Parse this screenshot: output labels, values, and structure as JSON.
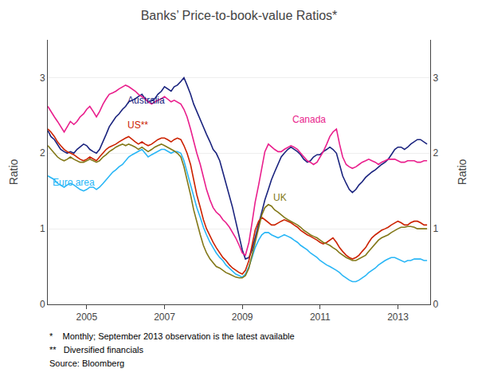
{
  "chart_data": {
    "type": "line",
    "title": "Banks’ Price-to-book-value Ratios*",
    "ylabel": "Ratio",
    "y2label": "Ratio",
    "xlim": [
      2004.0,
      2013.83
    ],
    "xticks": [
      2005,
      2007,
      2009,
      2011,
      2013
    ],
    "ylim": [
      0,
      3.5
    ],
    "yticks": [
      0,
      1,
      2,
      3
    ],
    "y2lim": [
      0,
      3.5
    ],
    "y2ticks": [
      0,
      1,
      2,
      3
    ],
    "grid": true,
    "legend": false,
    "x": [
      2004.0,
      2004.08,
      2004.17,
      2004.25,
      2004.33,
      2004.42,
      2004.5,
      2004.58,
      2004.67,
      2004.75,
      2004.83,
      2004.92,
      2005.0,
      2005.08,
      2005.17,
      2005.25,
      2005.33,
      2005.42,
      2005.5,
      2005.58,
      2005.67,
      2005.75,
      2005.83,
      2005.92,
      2006.0,
      2006.08,
      2006.17,
      2006.25,
      2006.33,
      2006.42,
      2006.5,
      2006.58,
      2006.67,
      2006.75,
      2006.83,
      2006.92,
      2007.0,
      2007.08,
      2007.17,
      2007.25,
      2007.33,
      2007.42,
      2007.5,
      2007.58,
      2007.67,
      2007.75,
      2007.83,
      2007.92,
      2008.0,
      2008.08,
      2008.17,
      2008.25,
      2008.33,
      2008.42,
      2008.5,
      2008.58,
      2008.67,
      2008.75,
      2008.83,
      2008.92,
      2009.0,
      2009.08,
      2009.17,
      2009.25,
      2009.33,
      2009.42,
      2009.5,
      2009.58,
      2009.67,
      2009.75,
      2009.83,
      2009.92,
      2010.0,
      2010.08,
      2010.17,
      2010.25,
      2010.33,
      2010.42,
      2010.5,
      2010.58,
      2010.67,
      2010.75,
      2010.83,
      2010.92,
      2011.0,
      2011.08,
      2011.17,
      2011.25,
      2011.33,
      2011.42,
      2011.5,
      2011.58,
      2011.67,
      2011.75,
      2011.83,
      2011.92,
      2012.0,
      2012.08,
      2012.17,
      2012.25,
      2012.33,
      2012.42,
      2012.5,
      2012.58,
      2012.67,
      2012.75,
      2012.83,
      2012.92,
      2013.0,
      2013.08,
      2013.17,
      2013.25,
      2013.33,
      2013.42,
      2013.5,
      2013.58,
      2013.67,
      2013.75
    ],
    "series": [
      {
        "name": "Australia",
        "color": "#1a237e",
        "values": [
          2.3,
          2.22,
          2.18,
          2.12,
          2.05,
          2.02,
          2.0,
          2.02,
          2.0,
          2.05,
          2.08,
          2.12,
          2.1,
          2.05,
          2.02,
          2.0,
          2.05,
          2.15,
          2.25,
          2.35,
          2.42,
          2.48,
          2.52,
          2.58,
          2.62,
          2.68,
          2.7,
          2.72,
          2.75,
          2.78,
          2.72,
          2.68,
          2.7,
          2.72,
          2.78,
          2.82,
          2.88,
          2.85,
          2.82,
          2.88,
          2.9,
          2.95,
          3.0,
          2.9,
          2.78,
          2.65,
          2.55,
          2.45,
          2.35,
          2.25,
          2.15,
          2.05,
          2.0,
          1.9,
          1.75,
          1.6,
          1.45,
          1.28,
          1.1,
          0.9,
          0.72,
          0.6,
          0.62,
          0.72,
          0.88,
          1.05,
          1.2,
          1.38,
          1.52,
          1.65,
          1.75,
          1.85,
          1.95,
          2.0,
          2.05,
          2.08,
          2.05,
          2.02,
          1.98,
          1.92,
          1.88,
          1.9,
          1.95,
          1.98,
          1.98,
          2.02,
          2.05,
          2.08,
          2.05,
          2.0,
          1.85,
          1.7,
          1.6,
          1.52,
          1.48,
          1.52,
          1.58,
          1.62,
          1.68,
          1.72,
          1.75,
          1.78,
          1.82,
          1.85,
          1.88,
          1.92,
          1.98,
          2.05,
          2.08,
          2.08,
          2.05,
          2.08,
          2.12,
          2.15,
          2.18,
          2.18,
          2.15,
          2.12
        ]
      },
      {
        "name": "Canada",
        "color": "#e91e8c",
        "values": [
          2.62,
          2.55,
          2.48,
          2.42,
          2.35,
          2.28,
          2.35,
          2.42,
          2.38,
          2.42,
          2.48,
          2.52,
          2.58,
          2.62,
          2.55,
          2.48,
          2.55,
          2.65,
          2.72,
          2.78,
          2.8,
          2.82,
          2.85,
          2.88,
          2.9,
          2.88,
          2.85,
          2.82,
          2.78,
          2.75,
          2.72,
          2.68,
          2.65,
          2.68,
          2.7,
          2.72,
          2.75,
          2.72,
          2.68,
          2.7,
          2.68,
          2.65,
          2.58,
          2.48,
          2.32,
          2.15,
          2.0,
          1.85,
          1.68,
          1.52,
          1.38,
          1.28,
          1.22,
          1.18,
          1.12,
          1.08,
          1.02,
          0.95,
          0.88,
          0.78,
          0.68,
          0.65,
          0.82,
          1.08,
          1.35,
          1.58,
          1.82,
          2.02,
          2.12,
          2.08,
          2.05,
          2.02,
          2.02,
          2.05,
          2.08,
          2.1,
          2.08,
          2.05,
          2.0,
          1.95,
          1.9,
          1.88,
          1.85,
          1.88,
          1.95,
          2.02,
          2.12,
          2.22,
          2.28,
          2.32,
          2.12,
          1.95,
          1.85,
          1.82,
          1.8,
          1.82,
          1.85,
          1.88,
          1.9,
          1.92,
          1.9,
          1.88,
          1.85,
          1.88,
          1.9,
          1.92,
          1.92,
          1.92,
          1.9,
          1.88,
          1.88,
          1.9,
          1.9,
          1.9,
          1.88,
          1.88,
          1.9,
          1.9
        ]
      },
      {
        "name": "US**",
        "color": "#cc2200",
        "values": [
          2.32,
          2.28,
          2.22,
          2.15,
          2.1,
          2.05,
          2.02,
          2.0,
          1.98,
          1.95,
          1.92,
          1.9,
          1.92,
          1.95,
          1.92,
          1.9,
          1.95,
          2.0,
          2.05,
          2.08,
          2.1,
          2.12,
          2.15,
          2.18,
          2.2,
          2.22,
          2.18,
          2.15,
          2.12,
          2.15,
          2.12,
          2.1,
          2.12,
          2.15,
          2.18,
          2.2,
          2.2,
          2.18,
          2.15,
          2.18,
          2.2,
          2.18,
          2.1,
          2.0,
          1.85,
          1.65,
          1.45,
          1.28,
          1.12,
          1.0,
          0.9,
          0.82,
          0.75,
          0.68,
          0.62,
          0.58,
          0.52,
          0.48,
          0.45,
          0.42,
          0.4,
          0.45,
          0.58,
          0.78,
          0.98,
          1.1,
          1.15,
          1.12,
          1.08,
          1.05,
          1.05,
          1.08,
          1.1,
          1.12,
          1.1,
          1.08,
          1.05,
          1.02,
          0.98,
          0.95,
          0.92,
          0.9,
          0.88,
          0.85,
          0.82,
          0.8,
          0.82,
          0.85,
          0.88,
          0.82,
          0.75,
          0.7,
          0.65,
          0.62,
          0.6,
          0.62,
          0.65,
          0.7,
          0.75,
          0.82,
          0.88,
          0.92,
          0.95,
          0.98,
          1.0,
          1.02,
          1.05,
          1.08,
          1.1,
          1.08,
          1.05,
          1.05,
          1.08,
          1.1,
          1.1,
          1.08,
          1.05,
          1.05
        ]
      },
      {
        "name": "Euro area",
        "color": "#29b6f6",
        "values": [
          1.7,
          1.68,
          1.65,
          1.6,
          1.58,
          1.55,
          1.58,
          1.6,
          1.58,
          1.55,
          1.52,
          1.5,
          1.52,
          1.55,
          1.55,
          1.52,
          1.55,
          1.6,
          1.65,
          1.7,
          1.75,
          1.78,
          1.82,
          1.85,
          1.9,
          1.95,
          1.98,
          2.0,
          2.02,
          2.05,
          2.0,
          1.95,
          1.98,
          2.0,
          2.02,
          2.05,
          2.05,
          2.03,
          2.0,
          2.02,
          2.02,
          2.0,
          1.9,
          1.75,
          1.58,
          1.42,
          1.28,
          1.15,
          1.02,
          0.92,
          0.82,
          0.75,
          0.68,
          0.62,
          0.58,
          0.52,
          0.48,
          0.44,
          0.4,
          0.38,
          0.36,
          0.4,
          0.5,
          0.62,
          0.75,
          0.85,
          0.92,
          0.95,
          0.95,
          0.92,
          0.9,
          0.88,
          0.9,
          0.92,
          0.9,
          0.88,
          0.85,
          0.82,
          0.78,
          0.75,
          0.72,
          0.68,
          0.65,
          0.62,
          0.58,
          0.55,
          0.52,
          0.5,
          0.48,
          0.45,
          0.42,
          0.38,
          0.35,
          0.32,
          0.3,
          0.3,
          0.32,
          0.35,
          0.38,
          0.42,
          0.45,
          0.48,
          0.52,
          0.55,
          0.58,
          0.6,
          0.62,
          0.62,
          0.6,
          0.58,
          0.56,
          0.58,
          0.58,
          0.6,
          0.6,
          0.6,
          0.58,
          0.58
        ]
      },
      {
        "name": "UK",
        "color": "#827717",
        "values": [
          2.1,
          2.05,
          2.0,
          1.95,
          1.92,
          1.9,
          1.92,
          1.95,
          1.92,
          1.9,
          1.88,
          1.88,
          1.9,
          1.92,
          1.9,
          1.88,
          1.9,
          1.95,
          1.98,
          2.02,
          2.05,
          2.08,
          2.1,
          2.12,
          2.1,
          2.12,
          2.1,
          2.08,
          2.05,
          2.08,
          2.05,
          2.02,
          2.05,
          2.08,
          2.1,
          2.12,
          2.1,
          2.08,
          2.05,
          2.03,
          2.0,
          1.95,
          1.82,
          1.65,
          1.45,
          1.25,
          1.08,
          0.92,
          0.78,
          0.68,
          0.6,
          0.55,
          0.5,
          0.48,
          0.45,
          0.42,
          0.4,
          0.38,
          0.36,
          0.35,
          0.35,
          0.38,
          0.48,
          0.65,
          0.82,
          1.0,
          1.18,
          1.28,
          1.32,
          1.3,
          1.25,
          1.22,
          1.18,
          1.15,
          1.12,
          1.1,
          1.08,
          1.05,
          1.02,
          0.98,
          0.95,
          0.92,
          0.9,
          0.88,
          0.85,
          0.82,
          0.8,
          0.78,
          0.75,
          0.72,
          0.68,
          0.65,
          0.62,
          0.6,
          0.58,
          0.58,
          0.6,
          0.62,
          0.65,
          0.7,
          0.75,
          0.8,
          0.85,
          0.88,
          0.9,
          0.92,
          0.95,
          0.98,
          1.0,
          1.02,
          1.02,
          1.03,
          1.03,
          1.02,
          1.0,
          1.0,
          1.0,
          1.0
        ]
      }
    ],
    "annotations": [
      {
        "text": "Australia",
        "x": 2006.0,
        "y": 2.6,
        "color": "#1a237e"
      },
      {
        "text": "US**",
        "x": 2006.0,
        "y": 2.28,
        "color": "#cc2200"
      },
      {
        "text": "Euro area",
        "x": 2004.08,
        "y": 1.52,
        "color": "#29b6f6"
      },
      {
        "text": "Canada",
        "x": 2010.25,
        "y": 2.35,
        "color": "#e91e8c"
      },
      {
        "text": "UK",
        "x": 2009.75,
        "y": 1.32,
        "color": "#827717"
      }
    ],
    "footnotes": [
      "*    Monthly; September 2013 observation is the latest available",
      "**   Diversified financials",
      "Source: Bloomberg"
    ]
  }
}
